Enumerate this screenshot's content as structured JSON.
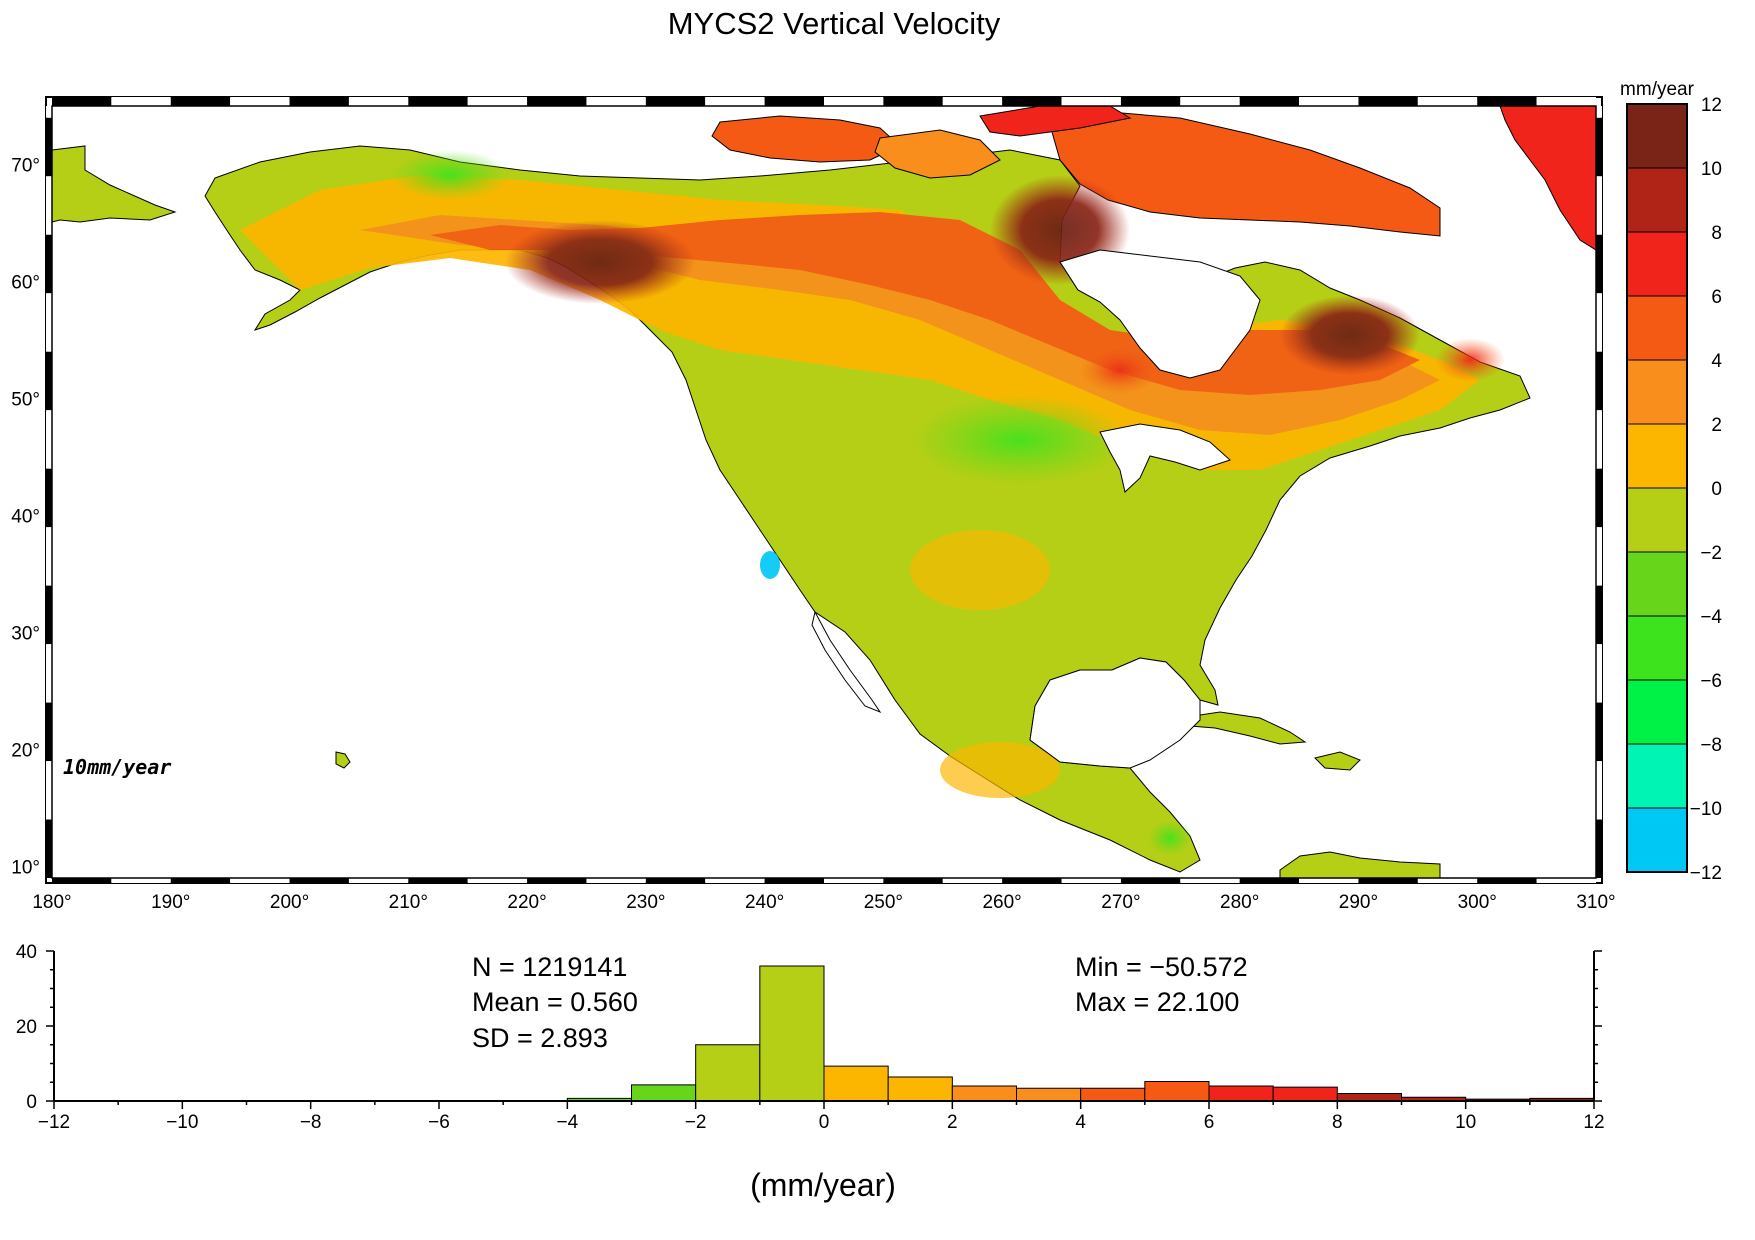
{
  "title": "MYCS2 Vertical Velocity",
  "map": {
    "lon_ticks": [
      180,
      190,
      200,
      210,
      220,
      230,
      240,
      250,
      260,
      270,
      280,
      290,
      300,
      310
    ],
    "lat_ticks": [
      10,
      20,
      30,
      40,
      50,
      60,
      70
    ],
    "lon_range": [
      180,
      310
    ],
    "lat_range": [
      9,
      75
    ],
    "degree_symbol": "°",
    "scale_label": "10mm/year"
  },
  "colorbar": {
    "unit": "mm/year",
    "ticks": [
      12,
      10,
      8,
      6,
      4,
      2,
      0,
      -2,
      -4,
      -6,
      -8,
      -10,
      -12
    ],
    "colors": [
      "#7a2418",
      "#b02418",
      "#f0241a",
      "#f55a14",
      "#f98e1c",
      "#fdb600",
      "#b5cf16",
      "#67d61a",
      "#3de41e",
      "#00f246",
      "#00f5b4",
      "#00c8f5"
    ]
  },
  "chart_data": {
    "type": "bar",
    "title": "",
    "xlabel": "(mm/year)",
    "ylabel": "",
    "xlim": [
      -12,
      12
    ],
    "ylim": [
      0,
      40
    ],
    "x_ticks": [
      -12,
      -10,
      -8,
      -6,
      -4,
      -2,
      0,
      2,
      4,
      6,
      8,
      10,
      12
    ],
    "y_ticks": [
      0,
      20,
      40
    ],
    "bins": [
      {
        "from": -4,
        "to": -3,
        "value": 0.7,
        "color": "#67d61a"
      },
      {
        "from": -3,
        "to": -2,
        "value": 4.3,
        "color": "#67d61a"
      },
      {
        "from": -2,
        "to": -1,
        "value": 15.0,
        "color": "#b5cf16"
      },
      {
        "from": -1,
        "to": 0,
        "value": 36.0,
        "color": "#b5cf16"
      },
      {
        "from": 0,
        "to": 1,
        "value": 9.3,
        "color": "#fdb600"
      },
      {
        "from": 1,
        "to": 2,
        "value": 6.4,
        "color": "#fdb600"
      },
      {
        "from": 2,
        "to": 3,
        "value": 4.0,
        "color": "#f98e1c"
      },
      {
        "from": 3,
        "to": 4,
        "value": 3.4,
        "color": "#f98e1c"
      },
      {
        "from": 4,
        "to": 5,
        "value": 3.4,
        "color": "#f55a14"
      },
      {
        "from": 5,
        "to": 6,
        "value": 5.2,
        "color": "#f55a14"
      },
      {
        "from": 6,
        "to": 7,
        "value": 4.0,
        "color": "#f0241a"
      },
      {
        "from": 7,
        "to": 8,
        "value": 3.7,
        "color": "#f0241a"
      },
      {
        "from": 8,
        "to": 9,
        "value": 2.0,
        "color": "#b02418"
      },
      {
        "from": 9,
        "to": 10,
        "value": 1.0,
        "color": "#b02418"
      },
      {
        "from": 10,
        "to": 11,
        "value": 0.5,
        "color": "#7a2418"
      },
      {
        "from": 11,
        "to": 12,
        "value": 0.7,
        "color": "#7a2418"
      }
    ],
    "stats": {
      "n": "N =  1219141",
      "mean": "Mean = 0.560",
      "sd": "SD = 2.893",
      "min": "Min = −50.572",
      "max": "Max = 22.100"
    }
  }
}
